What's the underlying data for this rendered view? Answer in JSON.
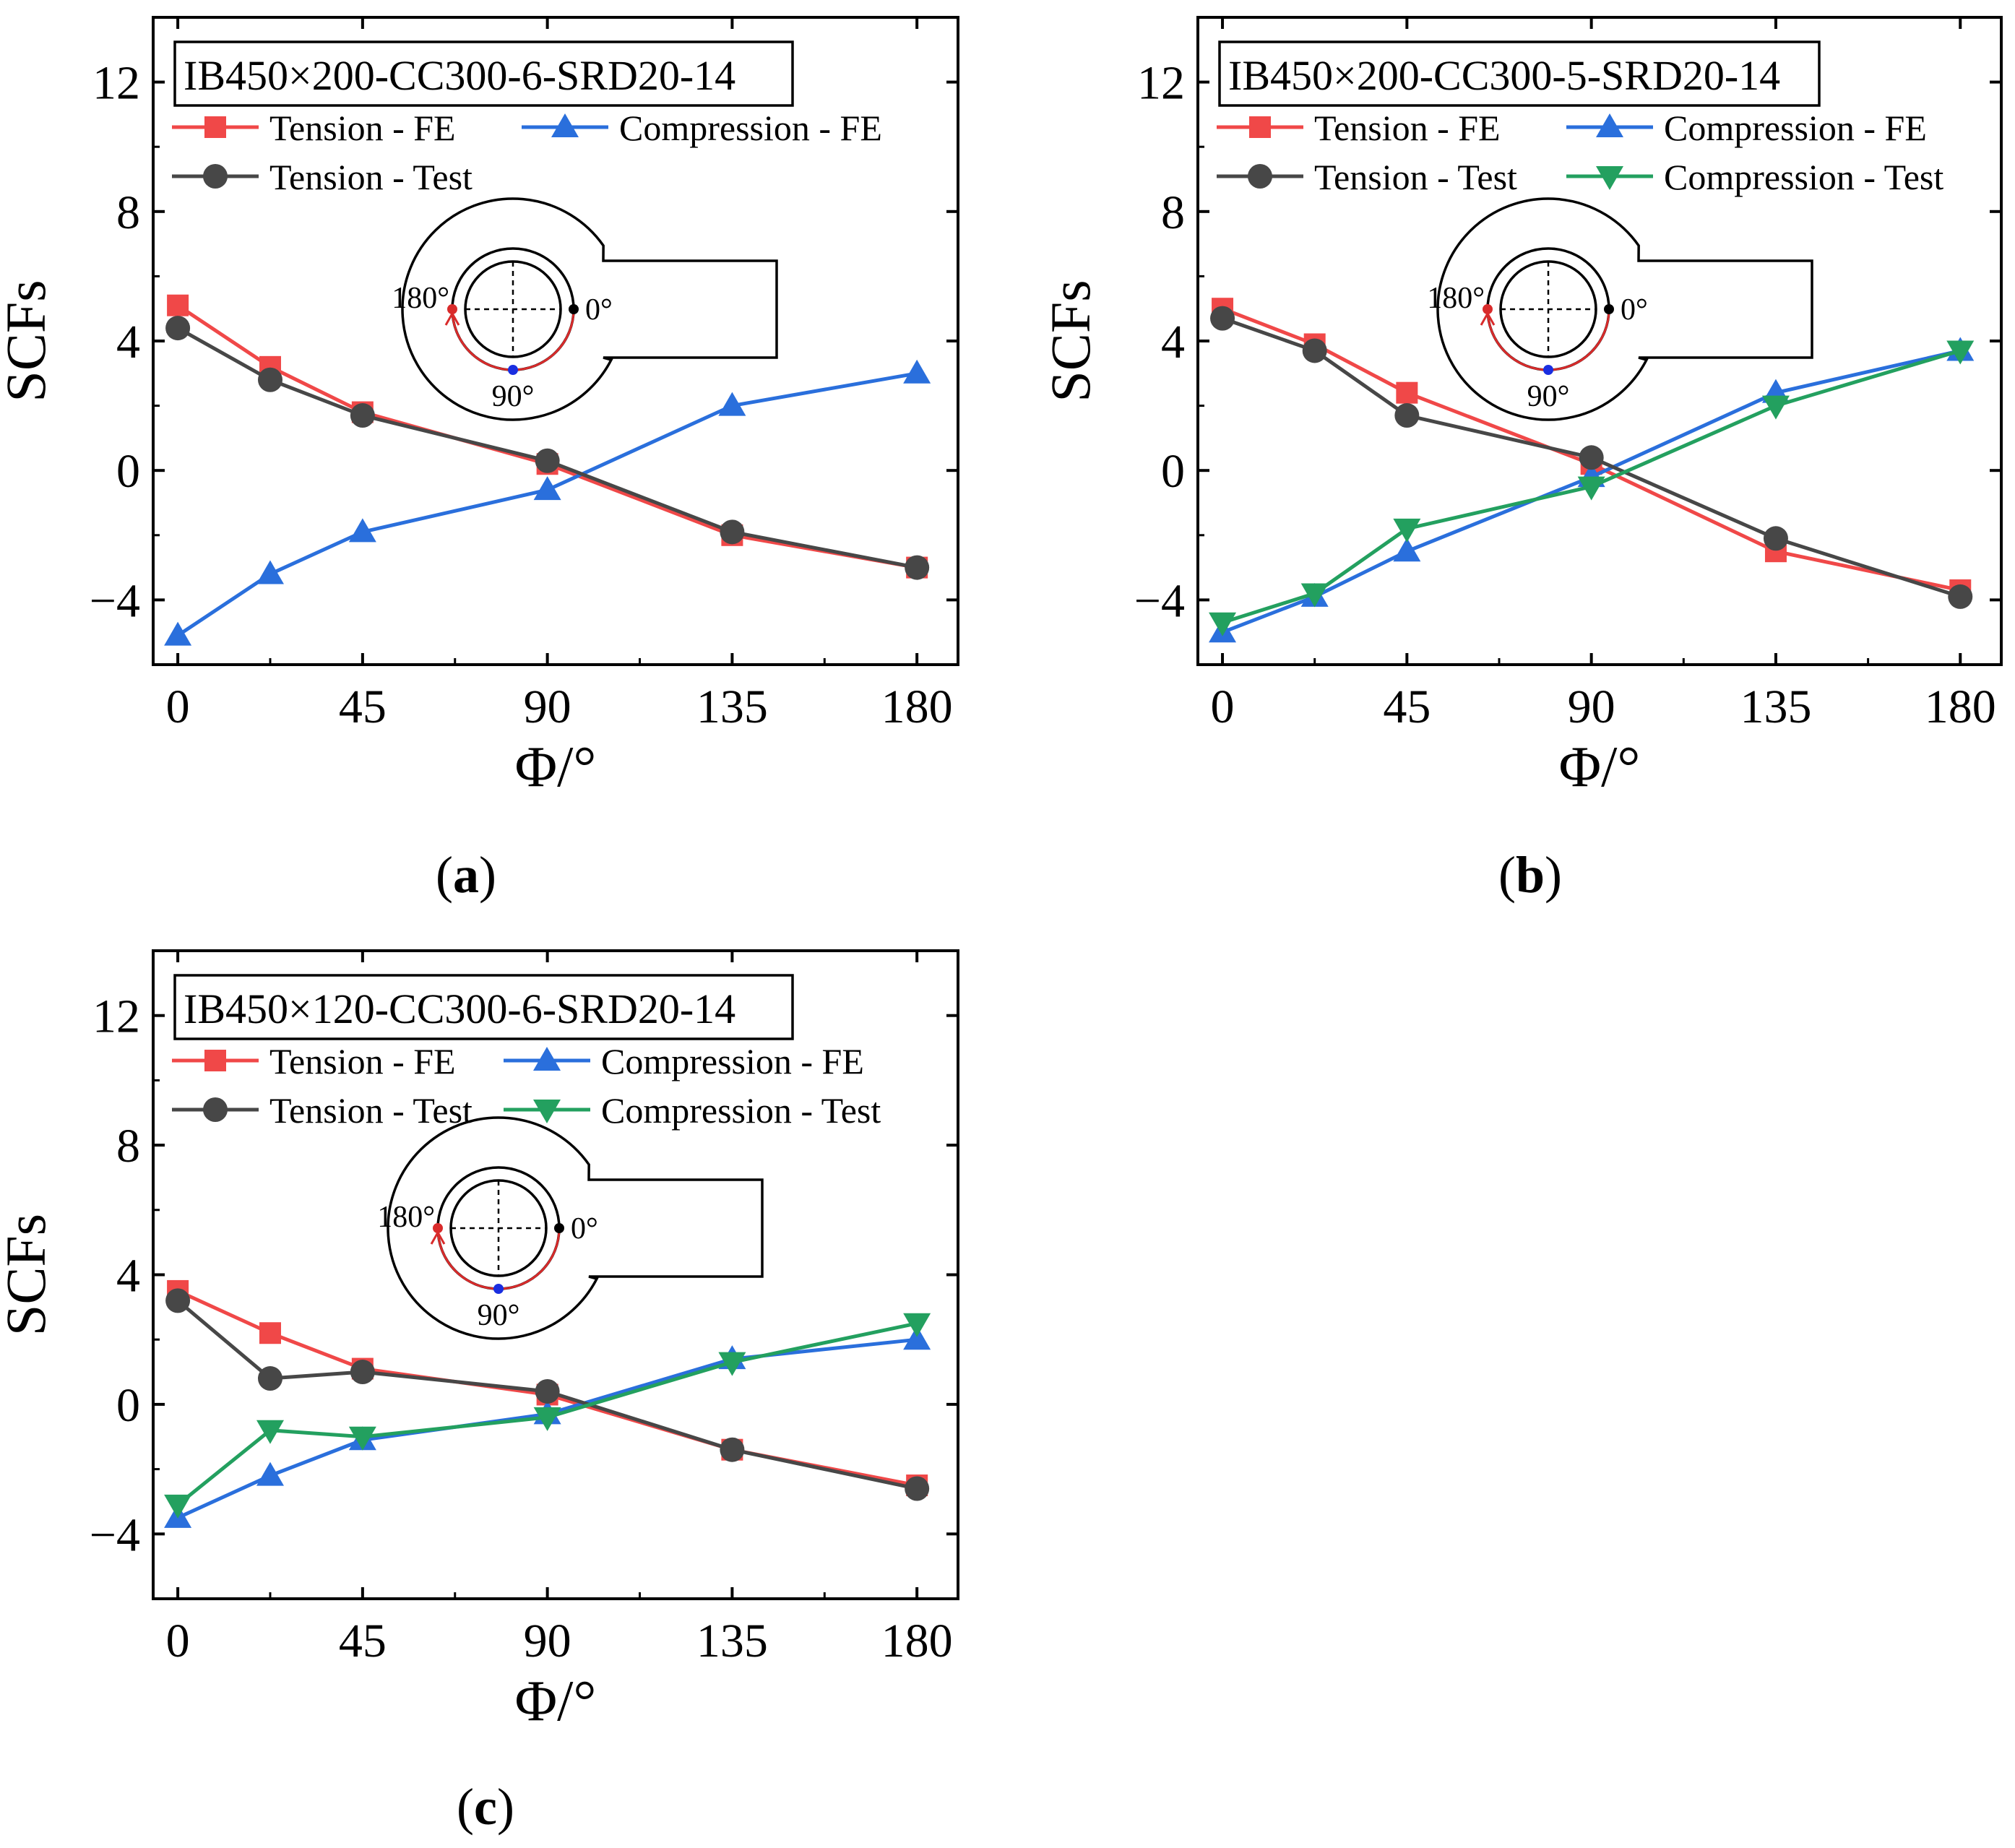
{
  "figure": {
    "panels": [
      {
        "label": "(a)",
        "label_letter": "a"
      },
      {
        "label": "(b)",
        "label_letter": "b"
      },
      {
        "label": "(c)",
        "label_letter": "c"
      }
    ]
  },
  "inset": {
    "label_0": "0°",
    "label_90": "90°",
    "label_180": "180°"
  },
  "colors": {
    "tension_fe": "#f04848",
    "compression_fe": "#2a6fdc",
    "tension_test": "#474747",
    "compression_test": "#23a05f"
  },
  "chart_data": [
    {
      "type": "line",
      "title": "IB450×200-CC300-6-SRD20-14",
      "xlabel": "Φ/°",
      "ylabel": "SCFs",
      "xlim": [
        -6,
        190
      ],
      "ylim": [
        -6,
        14
      ],
      "xticks": [
        0,
        45,
        90,
        135,
        180
      ],
      "yticks": [
        -4,
        0,
        4,
        8,
        12
      ],
      "series": [
        {
          "name": "Tension - FE",
          "key": "tension_fe",
          "marker": "square",
          "x": [
            0,
            22.5,
            45,
            90,
            135,
            180
          ],
          "values": [
            5.1,
            3.2,
            1.8,
            0.2,
            -2.0,
            -3.0
          ]
        },
        {
          "name": "Compression - FE",
          "key": "compression_fe",
          "marker": "triangle-up",
          "x": [
            0,
            22.5,
            45,
            90,
            135,
            180
          ],
          "values": [
            -5.1,
            -3.2,
            -1.9,
            -0.6,
            2.0,
            3.0
          ]
        },
        {
          "name": "Tension - Test",
          "key": "tension_test",
          "marker": "circle",
          "x": [
            0,
            22.5,
            45,
            90,
            135,
            180
          ],
          "values": [
            4.4,
            2.8,
            1.7,
            0.3,
            -1.9,
            -3.0
          ]
        }
      ]
    },
    {
      "type": "line",
      "title": "IB450×200-CC300-5-SRD20-14",
      "xlabel": "Φ/°",
      "ylabel": "SCFs",
      "xlim": [
        -6,
        190
      ],
      "ylim": [
        -6,
        14
      ],
      "xticks": [
        0,
        45,
        90,
        135,
        180
      ],
      "yticks": [
        -4,
        0,
        4,
        8,
        12
      ],
      "series": [
        {
          "name": "Tension - FE",
          "key": "tension_fe",
          "marker": "square",
          "x": [
            0,
            22.5,
            45,
            90,
            135,
            180
          ],
          "values": [
            5.0,
            3.9,
            2.4,
            0.2,
            -2.5,
            -3.7
          ]
        },
        {
          "name": "Compression - FE",
          "key": "compression_fe",
          "marker": "triangle-up",
          "x": [
            0,
            22.5,
            45,
            90,
            135,
            180
          ],
          "values": [
            -5.0,
            -3.9,
            -2.5,
            -0.2,
            2.4,
            3.7
          ]
        },
        {
          "name": "Tension - Test",
          "key": "tension_test",
          "marker": "circle",
          "x": [
            0,
            22.5,
            45,
            90,
            135,
            180
          ],
          "values": [
            4.7,
            3.7,
            1.7,
            0.4,
            -2.1,
            -3.9
          ]
        },
        {
          "name": "Compression - Test",
          "key": "compression_test",
          "marker": "triangle-down",
          "x": [
            0,
            22.5,
            45,
            90,
            135,
            180
          ],
          "values": [
            -4.7,
            -3.8,
            -1.8,
            -0.5,
            2.0,
            3.7
          ]
        }
      ]
    },
    {
      "type": "line",
      "title": "IB450×120-CC300-6-SRD20-14",
      "xlabel": "Φ/°",
      "ylabel": "SCFs",
      "xlim": [
        -6,
        190
      ],
      "ylim": [
        -6,
        14
      ],
      "xticks": [
        0,
        45,
        90,
        135,
        180
      ],
      "yticks": [
        -4,
        0,
        4,
        8,
        12
      ],
      "series": [
        {
          "name": "Tension - FE",
          "key": "tension_fe",
          "marker": "square",
          "x": [
            0,
            22.5,
            45,
            90,
            135,
            180
          ],
          "values": [
            3.5,
            2.2,
            1.1,
            0.3,
            -1.4,
            -2.5
          ]
        },
        {
          "name": "Compression - FE",
          "key": "compression_fe",
          "marker": "triangle-up",
          "x": [
            0,
            22.5,
            45,
            90,
            135,
            180
          ],
          "values": [
            -3.5,
            -2.2,
            -1.1,
            -0.3,
            1.4,
            2.0
          ]
        },
        {
          "name": "Tension - Test",
          "key": "tension_test",
          "marker": "circle",
          "x": [
            0,
            22.5,
            45,
            90,
            135,
            180
          ],
          "values": [
            3.2,
            0.8,
            1.0,
            0.4,
            -1.4,
            -2.6
          ]
        },
        {
          "name": "Compression - Test",
          "key": "compression_test",
          "marker": "triangle-down",
          "x": [
            0,
            22.5,
            45,
            90,
            135,
            180
          ],
          "values": [
            -3.1,
            -0.8,
            -1.0,
            -0.4,
            1.3,
            2.5
          ]
        }
      ]
    }
  ]
}
